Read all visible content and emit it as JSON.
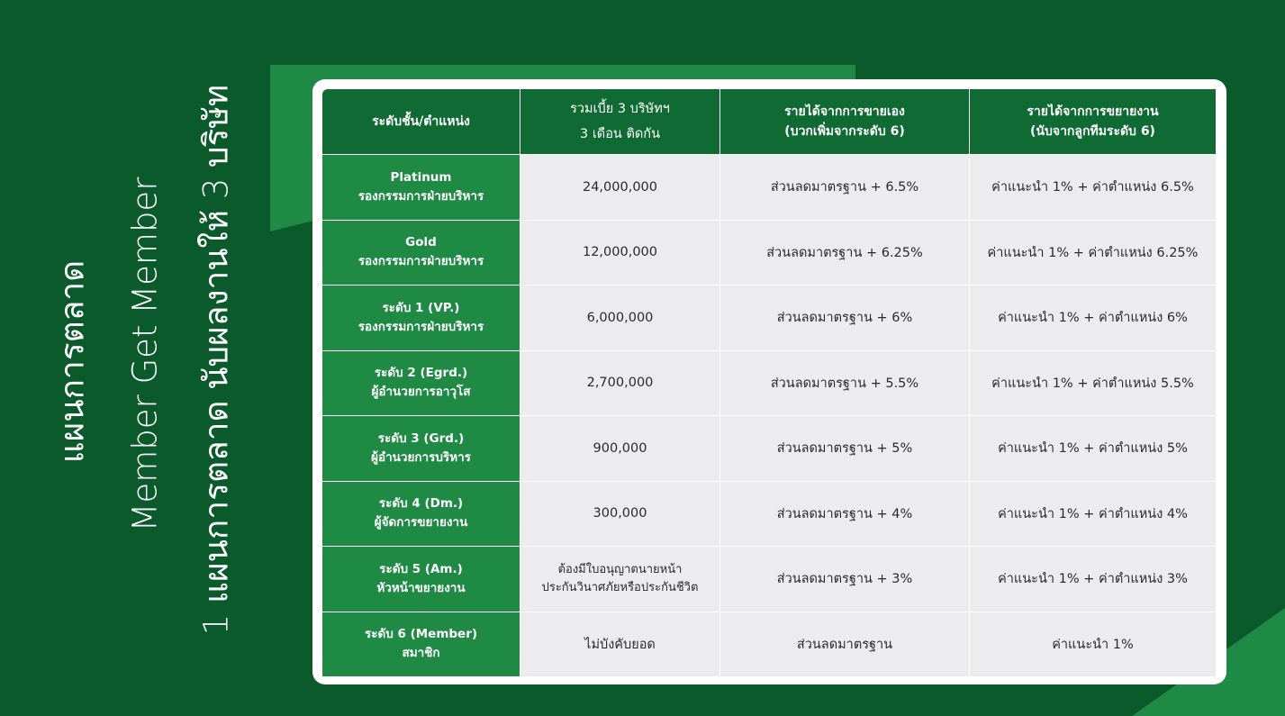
{
  "side_titles": {
    "line1": "แผนการตลาด",
    "line2": "Member Get Member",
    "line3": "1 แผนการตลาด นับผลงานให้ 3 บริษัท"
  },
  "table": {
    "headers": [
      {
        "line1": "ระดับชั้น/ตำแหน่ง",
        "line2": ""
      },
      {
        "line1": "รวมเบี้ย 3 บริษัทฯ",
        "line2": "3 เดือน ติดกัน"
      },
      {
        "line1": "รายได้จากการขายเอง",
        "line2": "(บวกเพิ่มจากระดับ 6)"
      },
      {
        "line1": "รายได้จากการขยายงาน",
        "line2": "(นับจากลูกทีมระดับ 6)"
      }
    ],
    "rows": [
      {
        "level_line1": "Platinum",
        "level_line2": "รองกรรมการฝ่ายบริหาร",
        "premium_line1": "24,000,000",
        "premium_line2": "",
        "own_sales": "ส่วนลดมาตรฐาน + 6.5%",
        "team_income": "ค่าแนะนำ 1% + ค่าตำแหน่ง 6.5%"
      },
      {
        "level_line1": "Gold",
        "level_line2": "รองกรรมการฝ่ายบริหาร",
        "premium_line1": "12,000,000",
        "premium_line2": "",
        "own_sales": "ส่วนลดมาตรฐาน + 6.25%",
        "team_income": "ค่าแนะนำ 1% + ค่าตำแหน่ง 6.25%"
      },
      {
        "level_line1": "ระดับ 1 (VP.)",
        "level_line2": "รองกรรมการฝ่ายบริหาร",
        "premium_line1": "6,000,000",
        "premium_line2": "",
        "own_sales": "ส่วนลดมาตรฐาน + 6%",
        "team_income": "ค่าแนะนำ 1% + ค่าตำแหน่ง 6%"
      },
      {
        "level_line1": "ระดับ 2 (Egrd.)",
        "level_line2": "ผู้อำนวยการอาวุโส",
        "premium_line1": "2,700,000",
        "premium_line2": "",
        "own_sales": "ส่วนลดมาตรฐาน + 5.5%",
        "team_income": "ค่าแนะนำ 1% + ค่าตำแหน่ง 5.5%"
      },
      {
        "level_line1": "ระดับ 3 (Grd.)",
        "level_line2": "ผู้อำนวยการบริหาร",
        "premium_line1": "900,000",
        "premium_line2": "",
        "own_sales": "ส่วนลดมาตรฐาน + 5%",
        "team_income": "ค่าแนะนำ 1% + ค่าตำแหน่ง 5%"
      },
      {
        "level_line1": "ระดับ 4 (Dm.)",
        "level_line2": "ผู้จัดการขยายงาน",
        "premium_line1": "300,000",
        "premium_line2": "",
        "own_sales": "ส่วนลดมาตรฐาน + 4%",
        "team_income": "ค่าแนะนำ 1% + ค่าตำแหน่ง 4%"
      },
      {
        "level_line1": "ระดับ 5 (Am.)",
        "level_line2": "หัวหน้าขยายงาน",
        "premium_line1": "ต้องมีใบอนุญาตนายหน้า",
        "premium_line2": "ประกันวินาศภัยหรือประกันชีวิต",
        "own_sales": "ส่วนลดมาตรฐาน + 3%",
        "team_income": "ค่าแนะนำ 1% + ค่าตำแหน่ง 3%"
      },
      {
        "level_line1": "ระดับ 6 (Member)",
        "level_line2": "สมาชิก",
        "premium_line1": "ไม่บังคับยอด",
        "premium_line2": "",
        "own_sales": "ส่วนลดมาตรฐาน",
        "team_income": "ค่าแนะนำ 1%"
      }
    ]
  },
  "colors": {
    "background": "#0b5a2b",
    "header": "#0f6b33",
    "level_cell": "#1f8a44",
    "data_cell": "#ececef",
    "card": "#ffffff"
  }
}
